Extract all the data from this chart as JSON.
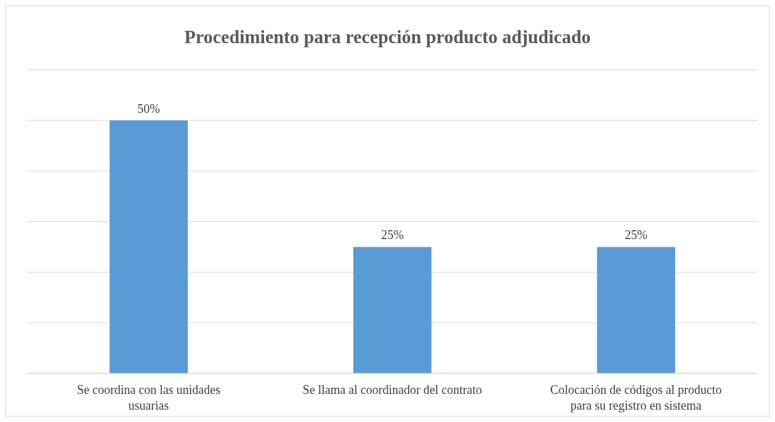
{
  "chart_data": {
    "type": "bar",
    "title": "Procedimiento para recepción producto adjudicado",
    "categories": [
      "Se coordina con las unidades usuarias",
      "Se llama al coordinador del contrato",
      "Colocación de códigos al producto para su registro en sistema"
    ],
    "values": [
      50,
      25,
      25
    ],
    "color": "#5b9bd5",
    "value_labels": [
      "50%",
      "25%",
      "25%"
    ],
    "ylim": [
      0,
      60
    ],
    "yticks": [
      {
        "value": 0,
        "label": null
      },
      {
        "value": 10,
        "label": null
      },
      {
        "value": 20,
        "label": null
      },
      {
        "value": 30,
        "label": null
      },
      {
        "value": 40,
        "label": null
      },
      {
        "value": 50,
        "label": null
      },
      {
        "value": 60,
        "label": null
      }
    ],
    "grid": "y",
    "tick_labels": "x"
  }
}
